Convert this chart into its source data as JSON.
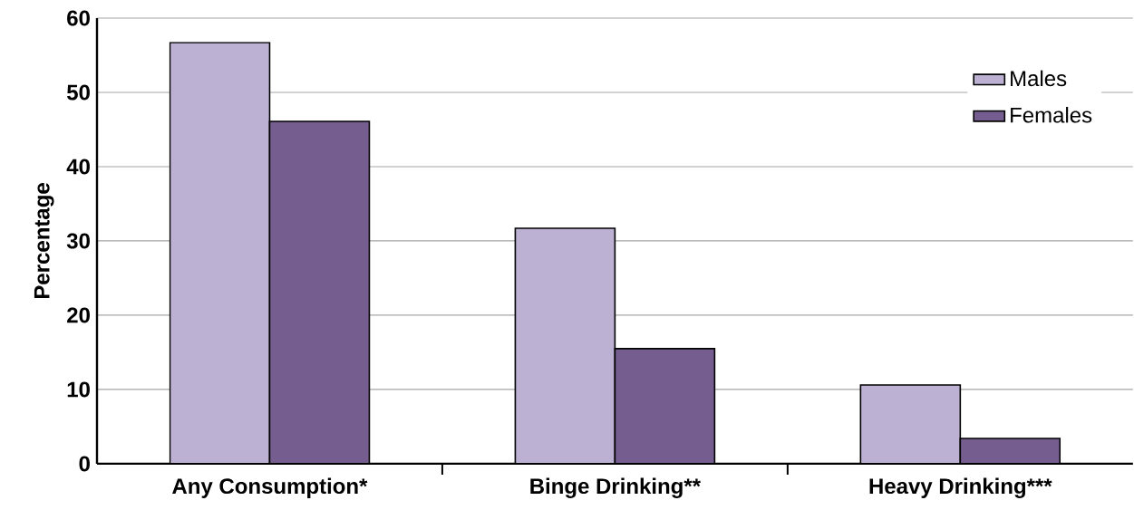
{
  "chart_data": {
    "type": "bar",
    "ylabel": "Percentage",
    "categories": [
      "Any Consumption*",
      "Binge Drinking**",
      "Heavy Drinking***"
    ],
    "series": [
      {
        "name": "Males",
        "color": "#bcb1d2",
        "values": [
          56.7,
          31.7,
          10.6
        ]
      },
      {
        "name": "Females",
        "color": "#755e8f",
        "values": [
          46.1,
          15.5,
          3.4
        ]
      }
    ],
    "ylim": [
      0,
      60
    ],
    "yticks": [
      0,
      10,
      20,
      30,
      40,
      50,
      60
    ],
    "grid": "y",
    "legend": "top right"
  }
}
